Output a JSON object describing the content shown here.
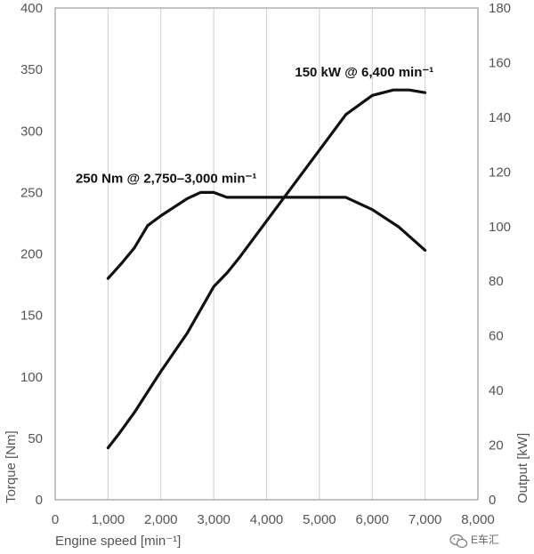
{
  "chart_data": {
    "type": "line",
    "xlabel": "Engine speed [min⁻¹]",
    "ylabel_left": "Torque [Nm]",
    "ylabel_right": "Output [kW]",
    "xlim": [
      0,
      8000
    ],
    "ylim_left": [
      0,
      400
    ],
    "ylim_right": [
      0,
      180
    ],
    "x_ticks": [
      0,
      1000,
      2000,
      3000,
      4000,
      5000,
      6000,
      7000,
      8000
    ],
    "x_tick_labels": [
      "0",
      "1,000",
      "2,000",
      "3,000",
      "4,000",
      "5,000",
      "6,000",
      "7,000",
      "8,000"
    ],
    "y_left_ticks": [
      0,
      50,
      100,
      150,
      200,
      250,
      300,
      350,
      400
    ],
    "y_left_tick_labels": [
      "0",
      "50",
      "100",
      "150",
      "200",
      "250",
      "300",
      "350",
      "400"
    ],
    "y_right_ticks": [
      0,
      20,
      40,
      60,
      80,
      100,
      120,
      140,
      160,
      180
    ],
    "y_right_tick_labels": [
      "0",
      "20",
      "40",
      "60",
      "80",
      "100",
      "120",
      "140",
      "160",
      "180"
    ],
    "grid": "vertical",
    "series": [
      {
        "axis": "left",
        "x": [
          1000,
          1250,
          1500,
          1750,
          2000,
          2500,
          2750,
          3000,
          3250,
          4000,
          5000,
          5500,
          6000,
          6500,
          7000
        ],
        "values": [
          180,
          192,
          205,
          223,
          231,
          245,
          250,
          250,
          246,
          246,
          246,
          246,
          236,
          222,
          203
        ]
      },
      {
        "axis": "right",
        "x": [
          1000,
          1200,
          1500,
          1800,
          2000,
          2500,
          3000,
          3250,
          3500,
          4000,
          4500,
          5000,
          5500,
          6000,
          6400,
          6700,
          7000
        ],
        "values": [
          19,
          24,
          32,
          41,
          47,
          61,
          78,
          83,
          89,
          102,
          115,
          128,
          141,
          148,
          150,
          150,
          149
        ]
      }
    ],
    "annotations": [
      {
        "text": "150 kW @ 6,400 min⁻¹",
        "axis": "right",
        "x": 5850,
        "y": 155
      },
      {
        "text": "250 Nm @ 2,750–3,000 min⁻¹",
        "axis": "left",
        "x": 2100,
        "y": 258
      }
    ]
  },
  "watermark": {
    "icon": "wechat-icon",
    "text": "E车汇"
  }
}
